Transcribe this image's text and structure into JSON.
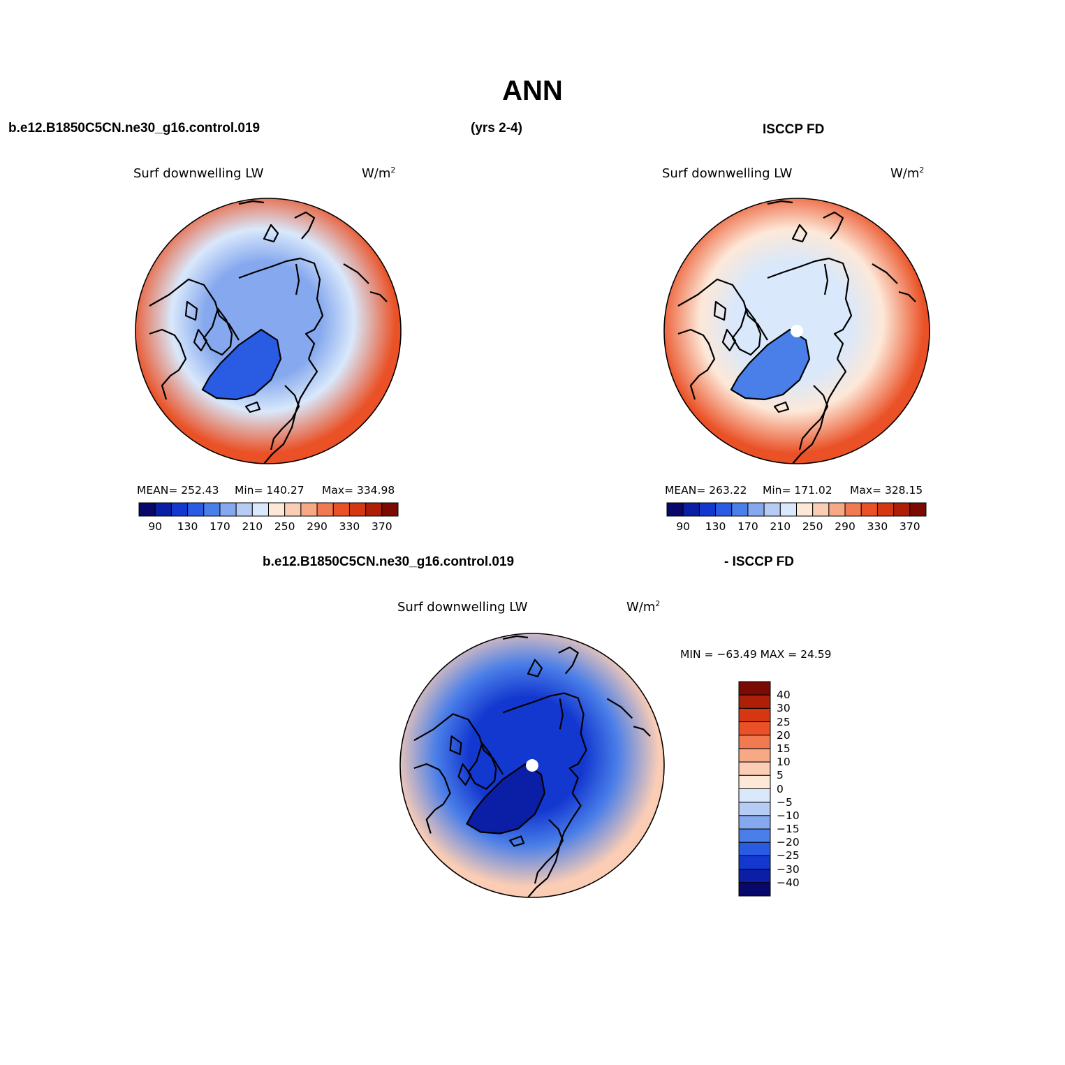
{
  "title": "ANN",
  "header": {
    "case": "b.e12.B1850C5CN.ne30_g16.control.019",
    "years": "(yrs 2-4)",
    "obs": "ISCCP FD"
  },
  "diff_header": {
    "case": "b.e12.B1850C5CN.ne30_g16.control.019",
    "obs": "- ISCCP FD"
  },
  "panels": [
    {
      "variable": "Surf downwelling LW",
      "units": "W/m",
      "units_exp": "2",
      "mean_text": "MEAN= 252.43",
      "min_text": "Min= 140.27",
      "max_text": "Max= 334.98",
      "pole_mask": false
    },
    {
      "variable": "Surf downwelling LW",
      "units": "W/m",
      "units_exp": "2",
      "mean_text": "MEAN= 263.22",
      "min_text": "Min= 171.02",
      "max_text": "Max= 328.15",
      "pole_mask": true
    }
  ],
  "diff_panel": {
    "variable": "Surf downwelling LW",
    "units": "W/m",
    "units_exp": "2",
    "minmax_text": "MIN = −63.49 MAX =  24.59",
    "pole_mask": true
  },
  "abs_colorbar": {
    "colors": [
      "#08086b",
      "#0b1fa6",
      "#1338d0",
      "#2a5be3",
      "#4a7ee8",
      "#85a8ee",
      "#b6ccf4",
      "#d9e8fb",
      "#fde8d8",
      "#fbcdb5",
      "#f7a885",
      "#f27a50",
      "#ea5126",
      "#d53712",
      "#ad1f07",
      "#7a0b03"
    ],
    "tick_labels": [
      "90",
      "130",
      "170",
      "210",
      "250",
      "290",
      "330",
      "370"
    ]
  },
  "diff_colorbar": {
    "colors": [
      "#7a0b03",
      "#ad1f07",
      "#d53712",
      "#ea5126",
      "#f27a50",
      "#f7a885",
      "#fbcdb5",
      "#fde8d8",
      "#d9e8fb",
      "#b6ccf4",
      "#85a8ee",
      "#4a7ee8",
      "#2a5be3",
      "#1338d0",
      "#0b1fa6",
      "#08086b"
    ],
    "tick_labels": [
      "40",
      "30",
      "25",
      "20",
      "15",
      "10",
      "5",
      "0",
      "−5",
      "−10",
      "−15",
      "−20",
      "−25",
      "−30",
      "−40"
    ]
  },
  "map_fields": {
    "model": {
      "pole": "#85a8ee",
      "mid": "#d9e8fb",
      "edge": "#ea5126",
      "greenland": "#2a5be3"
    },
    "obs": {
      "pole": "#d9e8fb",
      "mid": "#fde8d8",
      "edge": "#ea5126",
      "greenland": "#4a7ee8"
    },
    "diff": {
      "pole": "#1338d0",
      "mid": "#4a7ee8",
      "edge": "#fbcdb5",
      "greenland": "#0b1fa6"
    }
  }
}
